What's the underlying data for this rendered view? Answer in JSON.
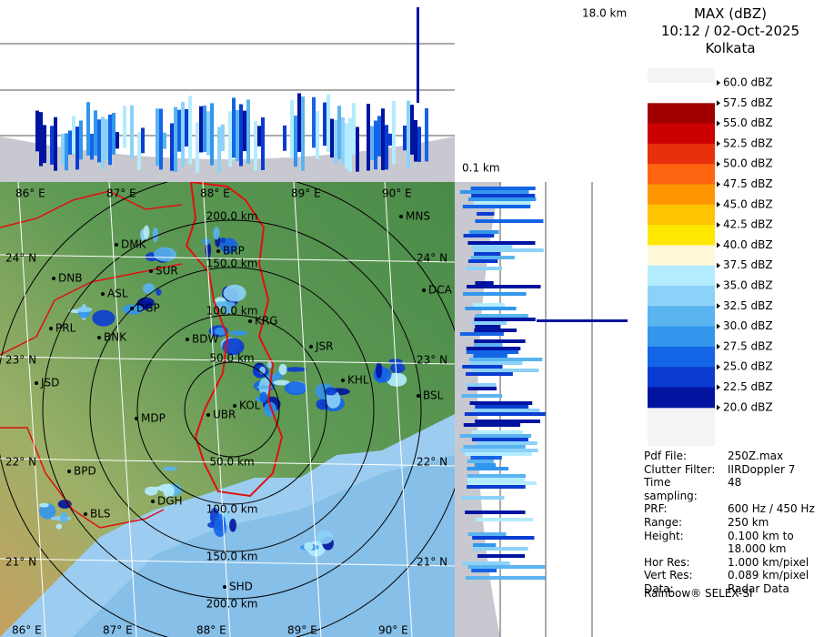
{
  "header": {
    "title": "MAX (dBZ)",
    "time": "10:12 / 02-Oct-2025",
    "site": "Kolkata"
  },
  "section_labels": {
    "top_height": "18.0 km",
    "bottom_height": "0.1 km"
  },
  "legend": [
    {
      "label": "60.0 dBZ",
      "color": "#ffffff"
    },
    {
      "label": "57.5 dBZ",
      "color": "#a00000"
    },
    {
      "label": "55.0 dBZ",
      "color": "#cc0000"
    },
    {
      "label": "52.5 dBZ",
      "color": "#e8300c"
    },
    {
      "label": "50.0 dBZ",
      "color": "#ff6410"
    },
    {
      "label": "47.5 dBZ",
      "color": "#ff9600"
    },
    {
      "label": "45.0 dBZ",
      "color": "#ffc400"
    },
    {
      "label": "42.5 dBZ",
      "color": "#ffe800"
    },
    {
      "label": "40.0 dBZ",
      "color": "#fff8d8"
    },
    {
      "label": "37.5 dBZ",
      "color": "#b4ecff"
    },
    {
      "label": "35.0 dBZ",
      "color": "#8cd2f8"
    },
    {
      "label": "32.5 dBZ",
      "color": "#5ab4f0"
    },
    {
      "label": "30.0 dBZ",
      "color": "#3296ec"
    },
    {
      "label": "27.5 dBZ",
      "color": "#1464e6"
    },
    {
      "label": "25.0 dBZ",
      "color": "#0a3cd2"
    },
    {
      "label": "22.5 dBZ",
      "color": "#0014a0"
    },
    {
      "label": "20.0 dBZ",
      "color": "#ffffff"
    }
  ],
  "info": [
    {
      "label": "Pdf File:",
      "value": "250Z.max"
    },
    {
      "label": "Clutter Filter:",
      "value": "IIRDoppler 7"
    },
    {
      "label": "Time sampling:",
      "value": "48"
    },
    {
      "label": "PRF:",
      "value": "600 Hz / 450 Hz"
    },
    {
      "label": "Range:",
      "value": "250 km"
    },
    {
      "label": "Height:",
      "value": "0.100 km to 18.000 km"
    },
    {
      "label": "Hor Res:",
      "value": "1.000 km/pixel"
    },
    {
      "label": "Vert Res:",
      "value": "0.089 km/pixel"
    },
    {
      "label": "Data:",
      "value": "Radar Data"
    }
  ],
  "footer": "Rainbow® SELEX-SI",
  "map": {
    "longitudes": [
      "86° E",
      "87° E",
      "88° E",
      "89° E",
      "90° E"
    ],
    "latitudes": [
      "24° N",
      "23° N",
      "22° N",
      "21° N"
    ],
    "ranges": [
      "50.0 km",
      "100.0 km",
      "150.0 km",
      "200.0 km"
    ],
    "cities": [
      "MNS",
      "DMK",
      "BRP",
      "SUR",
      "DNB",
      "ASL",
      "DGP",
      "DCA",
      "KRG",
      "PRL",
      "BNK",
      "BDW",
      "JSR",
      "KHL",
      "JSD",
      "BSL",
      "KOL",
      "MDP",
      "UBR",
      "BPD",
      "DGH",
      "BLS",
      "SHD"
    ]
  }
}
